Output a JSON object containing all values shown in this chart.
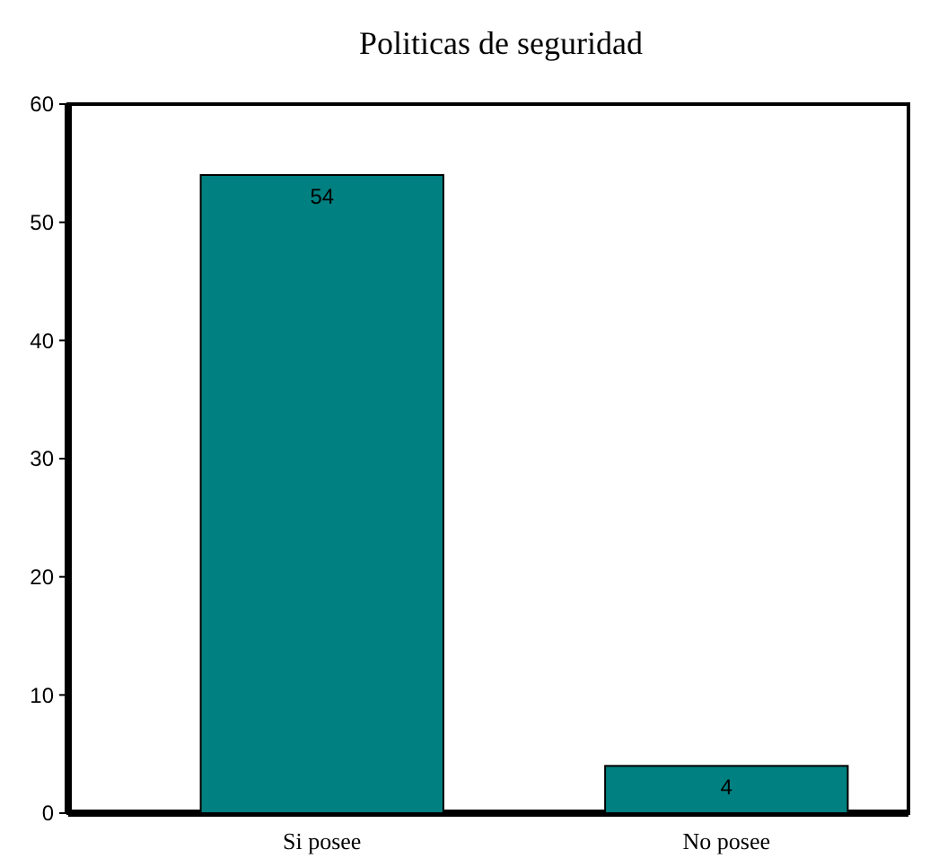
{
  "chart_data": {
    "type": "bar",
    "title": "Politicas de seguridad",
    "categories": [
      "Si posee",
      "No posee"
    ],
    "values": [
      54,
      4
    ],
    "color": "#008080",
    "ylim": [
      0,
      60
    ],
    "yticks": [
      0,
      10,
      20,
      30,
      40,
      50,
      60
    ],
    "data_labels": true,
    "grid": false
  }
}
